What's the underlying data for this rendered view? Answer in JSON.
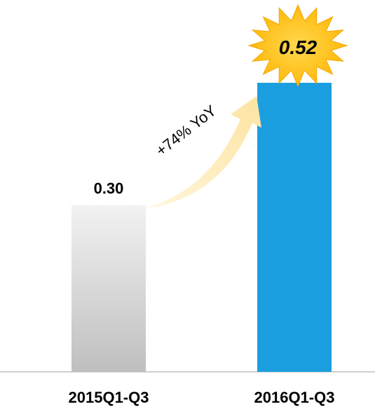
{
  "chart_data": {
    "type": "bar",
    "categories": [
      "2015Q1-Q3",
      "2016Q1-Q3"
    ],
    "values": [
      0.3,
      0.52
    ],
    "data_labels": [
      "0.30",
      "0.52"
    ],
    "annotation": "+74% YoY",
    "title": "",
    "xlabel": "",
    "ylabel": "",
    "ylim": [
      0,
      0.52
    ],
    "grid": false,
    "legend": "none",
    "colors": {
      "bar_2015_top": "#f2f2f2",
      "bar_2015_bottom": "#bfbfbf",
      "bar_2016": "#1a9ee0",
      "starburst": "#ffc000",
      "arrow": "#fde6a8",
      "axis": "#bfbfbf",
      "text": "#000000"
    }
  }
}
